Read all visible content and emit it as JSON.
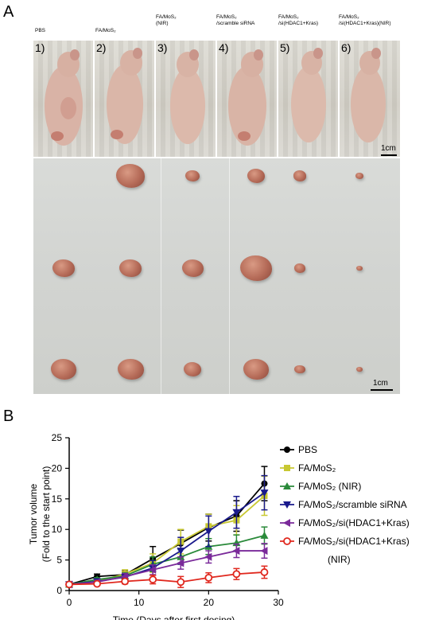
{
  "panel_a": {
    "letter": "A",
    "groups": [
      {
        "label": "PBS",
        "num": "1)"
      },
      {
        "label": "FA/MoS₂",
        "num": "2)"
      },
      {
        "label": "FA/MoS₂\n(NIR)",
        "num": "3)"
      },
      {
        "label": "FA/MoS₂\n/scramble siRNA",
        "num": "4)"
      },
      {
        "label": "FA/MoS₂\n/si(HDAC1+Kras)",
        "num": "5)"
      },
      {
        "label": "FA/MoS₂\n/si(HDAC1+Kras)(NIR)",
        "num": "6)"
      }
    ],
    "scale_mice": "1cm",
    "scale_tumor": "1cm",
    "tumor_sizes": [
      1.0,
      1.1,
      0.75,
      1.05,
      0.55,
      0.35
    ]
  },
  "panel_b": {
    "letter": "B"
  },
  "chart_data": {
    "type": "line",
    "xlabel": "Time (Days after first dosing)",
    "ylabel": "Tumor volume",
    "ylabel2": "(Fold to the start point)",
    "xlim": [
      0,
      30
    ],
    "ylim": [
      0,
      25
    ],
    "xticks": [
      0,
      10,
      20,
      30
    ],
    "yticks": [
      0,
      5,
      10,
      15,
      20,
      25
    ],
    "x": [
      0,
      4,
      8,
      12,
      16,
      20,
      24,
      28
    ],
    "legend_position": "right",
    "series": [
      {
        "name": "PBS",
        "color": "#000000",
        "marker": "circle-filled",
        "values": [
          1,
          2.3,
          2.6,
          5.2,
          7.7,
          10.3,
          12.2,
          17.5
        ],
        "errors": [
          0.2,
          0.4,
          0.6,
          2.0,
          2.2,
          2.2,
          2.5,
          2.8
        ]
      },
      {
        "name": "FA/MoS₂",
        "color": "#c8c832",
        "marker": "square",
        "values": [
          1,
          1.5,
          2.7,
          4.5,
          8.0,
          10.5,
          11.5,
          15.5
        ],
        "errors": [
          0.2,
          0.4,
          0.7,
          1.5,
          2.0,
          2.0,
          2.4,
          3.2
        ]
      },
      {
        "name": "FA/MoS₂ (NIR)",
        "color": "#2a8a3a",
        "marker": "triangle-up",
        "values": [
          1,
          1.8,
          2.4,
          4.3,
          5.5,
          7.2,
          7.8,
          9.0
        ],
        "errors": [
          0.2,
          0.3,
          0.5,
          1.2,
          1.2,
          1.3,
          1.3,
          1.4
        ]
      },
      {
        "name": "FA/MoS₂/scramble siRNA",
        "color": "#1a1a8c",
        "marker": "triangle-down",
        "values": [
          1,
          1.5,
          2.2,
          3.7,
          6.5,
          9.7,
          12.8,
          16.0
        ],
        "errors": [
          0.2,
          0.3,
          0.5,
          1.2,
          2.2,
          2.5,
          2.6,
          2.8
        ]
      },
      {
        "name": "FA/MoS₂/si(HDAC1+Kras)",
        "color": "#7a2a9a",
        "marker": "triangle-left",
        "values": [
          1,
          1.4,
          2.3,
          3.4,
          4.5,
          5.5,
          6.5,
          6.5
        ],
        "errors": [
          0.2,
          0.3,
          0.5,
          0.8,
          1.0,
          1.0,
          1.1,
          1.2
        ]
      },
      {
        "name": "FA/MoS₂/si(HDAC1+Kras)",
        "name2": "(NIR)",
        "color": "#e0281e",
        "marker": "circle-open",
        "values": [
          1,
          1.1,
          1.5,
          1.8,
          1.4,
          2.1,
          2.7,
          3.0
        ],
        "errors": [
          0.2,
          0.2,
          0.4,
          0.7,
          0.9,
          0.8,
          0.9,
          1.0
        ]
      }
    ]
  }
}
